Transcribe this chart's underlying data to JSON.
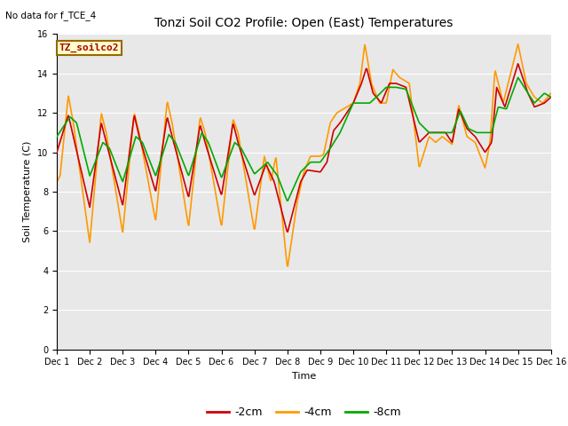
{
  "title": "Tonzi Soil CO2 Profile: Open (East) Temperatures",
  "subtitle": "No data for f_TCE_4",
  "xlabel": "Time",
  "ylabel": "Soil Temperature (C)",
  "ylim": [
    0,
    16
  ],
  "yticks": [
    0,
    2,
    4,
    6,
    8,
    10,
    12,
    14,
    16
  ],
  "xtick_labels": [
    "Dec 1",
    "Dec 2",
    "Dec 3",
    "Dec 4",
    "Dec 5",
    "Dec 6",
    "Dec 7",
    "Dec 8",
    "Dec 9",
    "Dec 10",
    "Dec 11",
    "Dec 12",
    "Dec 13",
    "Dec 14",
    "Dec 15",
    "Dec 16"
  ],
  "legend_labels": [
    "-2cm",
    "-4cm",
    "-8cm"
  ],
  "colors": {
    "neg2cm": "#cc0000",
    "neg4cm": "#ff9900",
    "neg8cm": "#00aa00"
  },
  "box_label": "TZ_soilco2",
  "box_bg": "#ffffcc",
  "box_border": "#996600",
  "bg_color": "#e8e8e8",
  "line_width": 1.2,
  "title_fontsize": 10,
  "axis_fontsize": 8,
  "tick_fontsize": 7
}
